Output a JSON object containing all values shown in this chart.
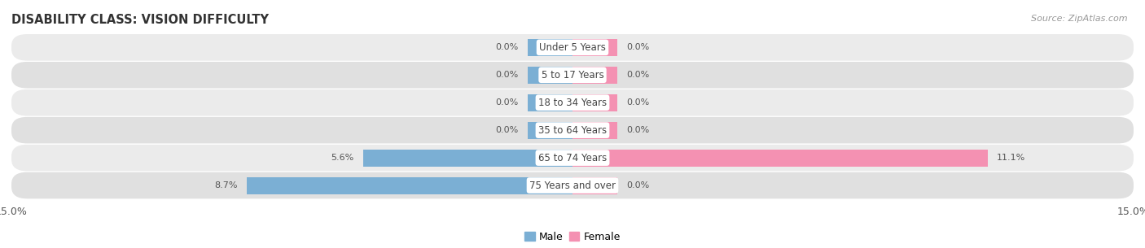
{
  "title": "DISABILITY CLASS: VISION DIFFICULTY",
  "source": "Source: ZipAtlas.com",
  "categories": [
    "Under 5 Years",
    "5 to 17 Years",
    "18 to 34 Years",
    "35 to 64 Years",
    "65 to 74 Years",
    "75 Years and over"
  ],
  "male_values": [
    0.0,
    0.0,
    0.0,
    0.0,
    5.6,
    8.7
  ],
  "female_values": [
    0.0,
    0.0,
    0.0,
    0.0,
    11.1,
    0.0
  ],
  "male_color": "#7bafd4",
  "female_color": "#f491b2",
  "row_bg_light": "#ebebeb",
  "row_bg_dark": "#e0e0e0",
  "xlim": 15.0,
  "min_bar_val": 1.2,
  "title_fontsize": 10.5,
  "source_fontsize": 8,
  "bar_height": 0.62,
  "background_color": "#ffffff",
  "label_color": "#444444",
  "value_color": "#555555"
}
